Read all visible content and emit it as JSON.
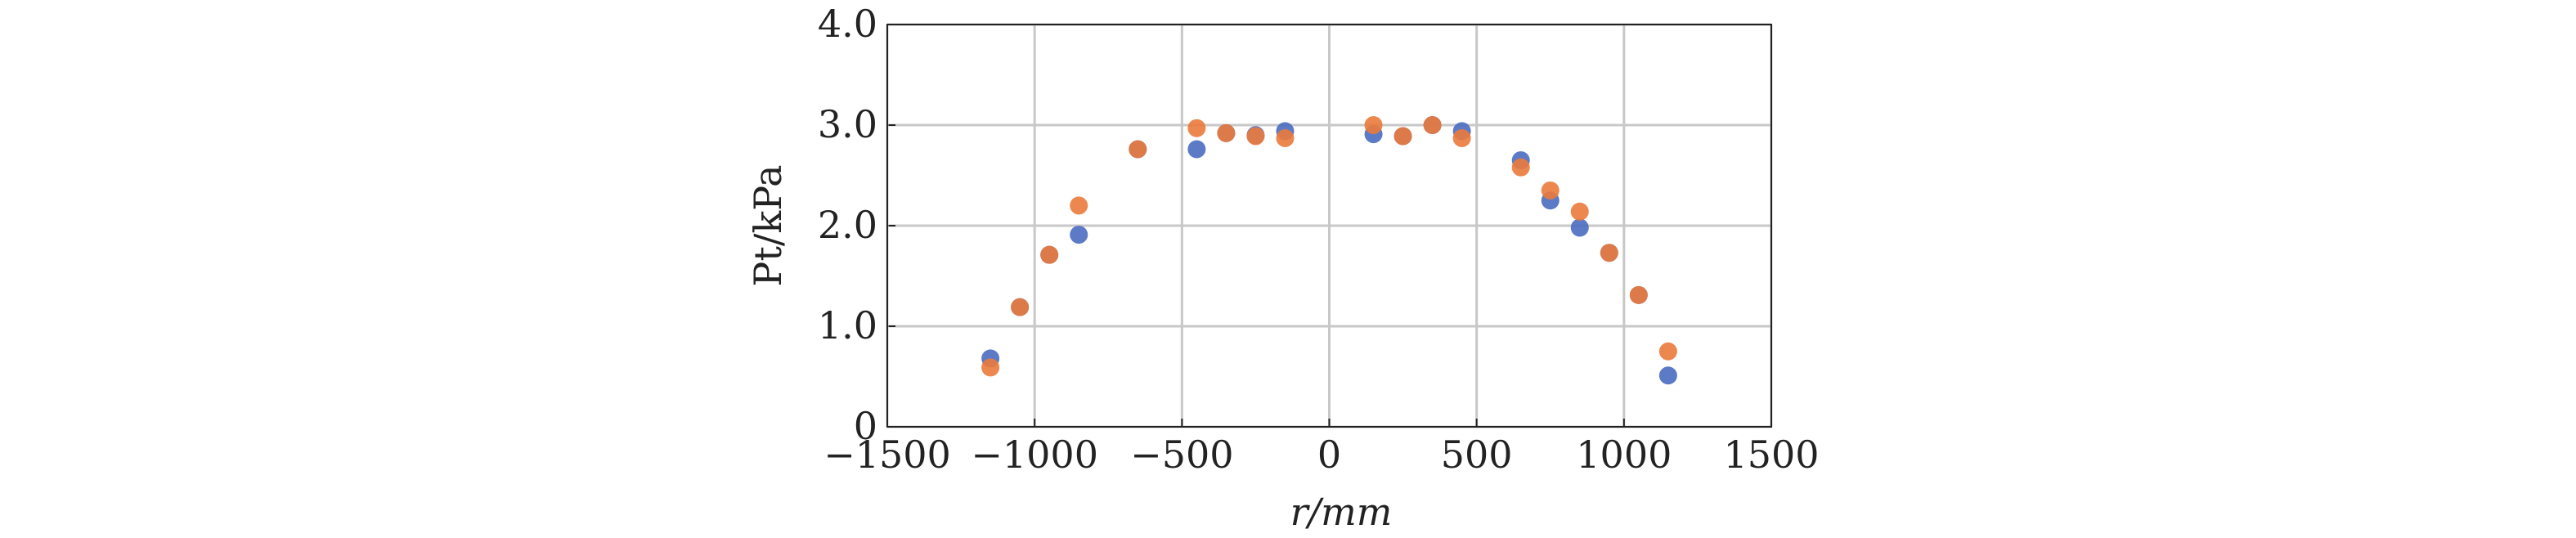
{
  "chart_data": {
    "type": "scatter",
    "xlabel": "r/mm",
    "ylabel": "Pt/kPa",
    "xlim": [
      -1500,
      1500
    ],
    "xticks": [
      {
        "value": -1500,
        "label": "−1500"
      },
      {
        "value": -1000,
        "label": "−1000"
      },
      {
        "value": -500,
        "label": "−500"
      },
      0,
      500,
      1000,
      1500
    ],
    "ylim": [
      0,
      4
    ],
    "yticks": [
      0,
      {
        "value": 1,
        "label": "1.0"
      },
      {
        "value": 2,
        "label": "2.0"
      },
      {
        "value": 3,
        "label": "3.0"
      },
      {
        "value": 4,
        "label": "4.0"
      }
    ],
    "grid": true,
    "x": [
      -1150,
      -1050,
      -950,
      -850,
      -650,
      -450,
      -350,
      -250,
      -150,
      150,
      250,
      350,
      450,
      650,
      750,
      850,
      950,
      1050,
      1150
    ],
    "series": [
      {
        "color": "#4a6cc0",
        "values": [
          0.68,
          1.19,
          1.71,
          1.91,
          2.76,
          2.76,
          2.92,
          2.9,
          2.94,
          2.91,
          2.89,
          3.0,
          2.94,
          2.65,
          2.25,
          1.98,
          1.73,
          1.31,
          0.51
        ]
      },
      {
        "color": "#ea7a3c",
        "values": [
          0.59,
          1.19,
          1.71,
          2.2,
          2.76,
          2.97,
          2.92,
          2.89,
          2.87,
          3.0,
          2.89,
          3.0,
          2.87,
          2.58,
          2.35,
          2.14,
          1.73,
          1.31,
          0.75
        ]
      }
    ]
  }
}
